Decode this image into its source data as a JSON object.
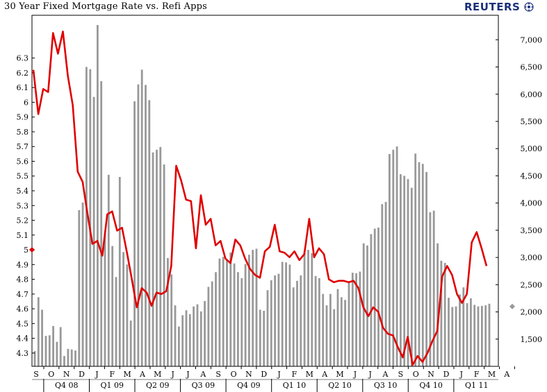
{
  "header": {
    "title": "30 Year Fixed Mortgage Rate vs. Refi Apps",
    "logo_text": "REUTERS"
  },
  "chart_data": {
    "type": "bar+line",
    "title": "30 Year Fixed Mortgage Rate vs. Refi Apps",
    "left_axis": {
      "ticks": [
        "4.3",
        "4.4",
        "4.5",
        "4.6",
        "4.7",
        "4.8",
        "4.9",
        "5",
        "5.1",
        "5.2",
        "5.3",
        "5.4",
        "5.5",
        "5.6",
        "5.7",
        "5.8",
        "5.9",
        "6",
        "6.1",
        "6.2",
        "6.3"
      ],
      "min": 4.21,
      "max": 6.59
    },
    "right_axis": {
      "ticks": [
        "1,500",
        "2,000",
        "2,500",
        "3,000",
        "3,500",
        "4,000",
        "4,500",
        "5,000",
        "5,500",
        "6,000",
        "6,500",
        "7,000"
      ],
      "min": 1000,
      "max": 7450
    },
    "month_labels": [
      "S",
      "O",
      "N",
      "D",
      "J",
      "F",
      "M",
      "A",
      "M",
      "J",
      "J",
      "A",
      "S",
      "O",
      "N",
      "D",
      "J",
      "F",
      "M",
      "A",
      "M",
      "J",
      "J",
      "A",
      "S",
      "O",
      "N",
      "D",
      "J",
      "F",
      "M",
      "A"
    ],
    "quarter_labels": [
      "Q4 08",
      "Q1 09",
      "Q2 09",
      "Q3 09",
      "Q4 09",
      "Q1 10",
      "Q2 10",
      "Q3 10",
      "Q4 10",
      "Q1 11"
    ],
    "current_rate_marker": 5.0,
    "current_refi_marker": 2100,
    "series": [
      {
        "name": "Refi Apps",
        "axis": "right",
        "color": "#999999",
        "values": [
          1280,
          2270,
          2040,
          1560,
          1570,
          1740,
          1450,
          1720,
          1190,
          1320,
          1310,
          1290,
          3870,
          4010,
          6500,
          6460,
          5950,
          7270,
          6240,
          3430,
          4520,
          3210,
          2640,
          4480,
          3100,
          2870,
          1840,
          5870,
          6180,
          6450,
          6170,
          5890,
          4930,
          4980,
          5030,
          4710,
          2990,
          2690,
          2120,
          1730,
          1940,
          2030,
          1960,
          2100,
          2140,
          2010,
          2200,
          2460,
          2560,
          2730,
          2980,
          3010,
          2970,
          3090,
          2890,
          2730,
          2620,
          2880,
          3050,
          3140,
          3160,
          2040,
          2020,
          2400,
          2580,
          2670,
          2700,
          2920,
          2910,
          2870,
          2450,
          2570,
          2670,
          3120,
          3140,
          3080,
          2660,
          2620,
          2330,
          2120,
          2330,
          2050,
          2420,
          2270,
          2220,
          2540,
          2720,
          2710,
          2740,
          3260,
          3220,
          3430,
          3530,
          3550,
          3980,
          4020,
          4900,
          4980,
          5040,
          4530,
          4500,
          4440,
          4280,
          4910,
          4750,
          4720,
          4570,
          3830,
          3860,
          3260,
          2940,
          2900,
          2260,
          2090,
          2100,
          2320,
          2450,
          2160,
          2250,
          2130,
          2100,
          2110,
          2120,
          2150
        ],
        "note": "weekly values estimated from bar heights"
      },
      {
        "name": "30 Year Fixed Mortgage Rate",
        "axis": "left",
        "color": "#e00000",
        "values": [
          6.22,
          5.92,
          6.09,
          6.07,
          6.47,
          6.33,
          6.48,
          6.18,
          5.98,
          5.53,
          5.46,
          5.24,
          5.04,
          5.06,
          4.96,
          5.24,
          5.26,
          5.13,
          5.15,
          4.98,
          4.8,
          4.61,
          4.74,
          4.71,
          4.62,
          4.71,
          4.7,
          4.72,
          4.89,
          5.57,
          5.47,
          5.34,
          5.33,
          5.01,
          5.37,
          5.17,
          5.21,
          5.03,
          5.06,
          4.94,
          4.91,
          5.07,
          5.03,
          4.94,
          4.87,
          4.83,
          4.81,
          4.99,
          5.02,
          5.17,
          4.99,
          4.98,
          4.95,
          4.99,
          4.93,
          4.97,
          5.21,
          4.95,
          5.01,
          4.97,
          4.8,
          4.78,
          4.79,
          4.79,
          4.78,
          4.79,
          4.74,
          4.61,
          4.55,
          4.61,
          4.58,
          4.47,
          4.43,
          4.42,
          4.34,
          4.27,
          4.41,
          4.22,
          4.28,
          4.24,
          4.3,
          4.38,
          4.45,
          4.82,
          4.89,
          4.83,
          4.7,
          4.64,
          4.7,
          5.05,
          5.12,
          5.01,
          4.89
        ]
      }
    ]
  }
}
